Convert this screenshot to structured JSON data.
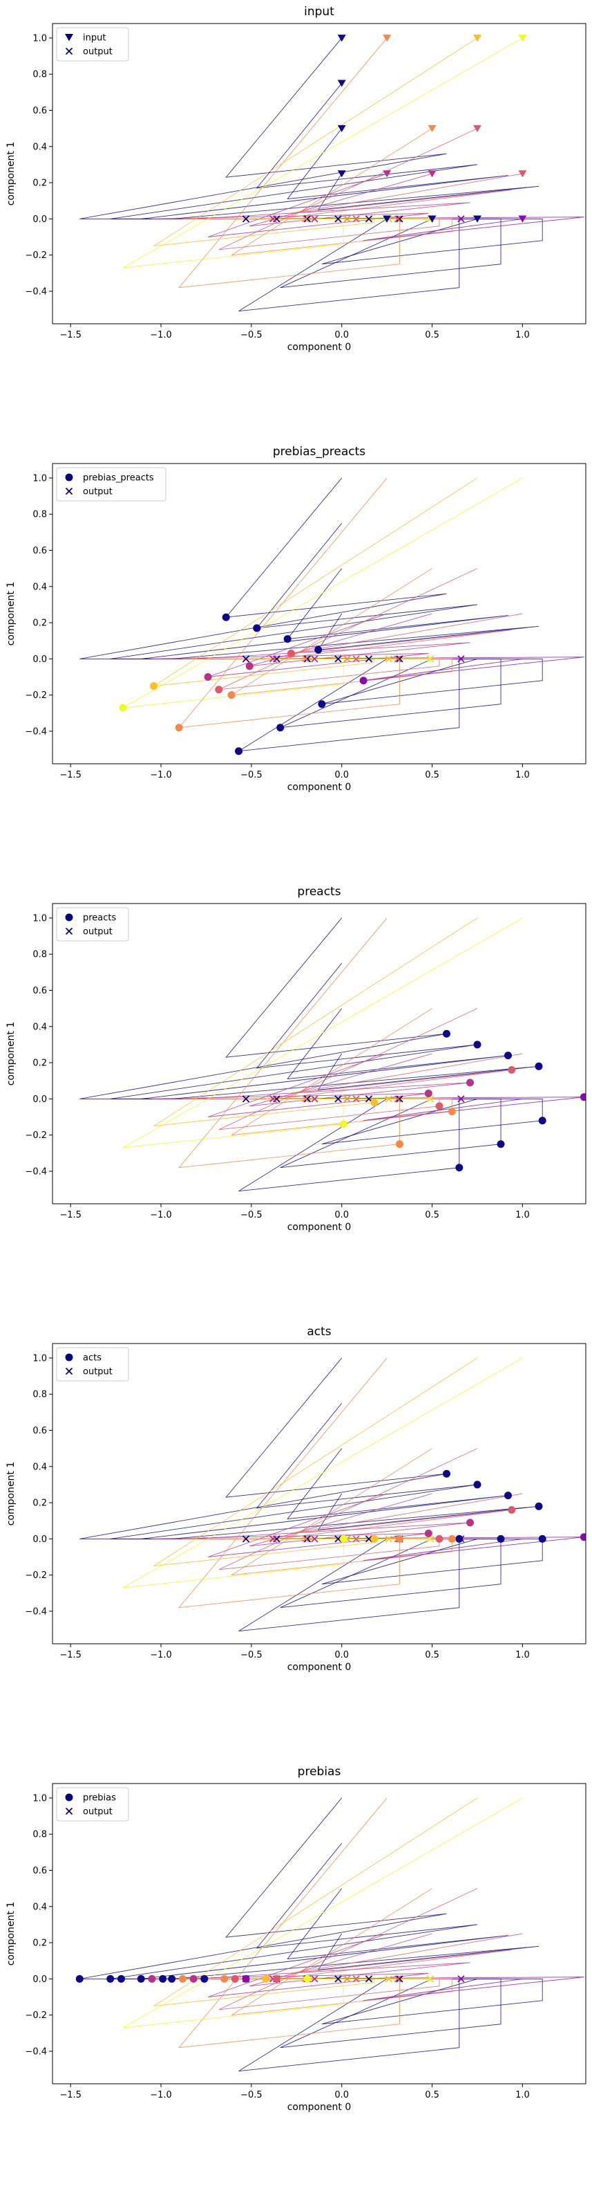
{
  "colors": {
    "accent": "#000080",
    "palette": [
      "#0d0887",
      "#5302a3",
      "#8b0aa5",
      "#b83289",
      "#db5c68",
      "#f48849",
      "#febd2a",
      "#f0f921"
    ]
  },
  "chart_data": [
    {
      "type": "scatter",
      "title": "input",
      "xlabel": "component 0",
      "ylabel": "component 1",
      "xlim": [
        -1.6,
        1.35
      ],
      "ylim": [
        -0.58,
        1.08
      ],
      "xticks": [
        -1.5,
        -1.0,
        -0.5,
        0.0,
        0.5,
        1.0
      ],
      "xtick_labels": [
        "−1.5",
        "−1.0",
        "−0.5",
        "0.0",
        "0.5",
        "1.0"
      ],
      "yticks": [
        -0.4,
        -0.2,
        0.0,
        0.2,
        0.4,
        0.6,
        0.8,
        1.0
      ],
      "ytick_labels": [
        "−0.4",
        "−0.2",
        "0.0",
        "0.2",
        "0.4",
        "0.6",
        "0.8",
        "1.0"
      ],
      "legend": {
        "position": "top-left",
        "entries": [
          "input",
          "output"
        ]
      },
      "markers": "triangle-down",
      "point_source": "input"
    },
    {
      "type": "scatter",
      "title": "prebias_preacts",
      "xlabel": "component 0",
      "ylabel": "component 1",
      "xlim": [
        -1.6,
        1.35
      ],
      "ylim": [
        -0.58,
        1.08
      ],
      "xticks": [
        -1.5,
        -1.0,
        -0.5,
        0.0,
        0.5,
        1.0
      ],
      "xtick_labels": [
        "−1.5",
        "−1.0",
        "−0.5",
        "0.0",
        "0.5",
        "1.0"
      ],
      "yticks": [
        -0.4,
        -0.2,
        0.0,
        0.2,
        0.4,
        0.6,
        0.8,
        1.0
      ],
      "ytick_labels": [
        "−0.4",
        "−0.2",
        "0.0",
        "0.2",
        "0.4",
        "0.6",
        "0.8",
        "1.0"
      ],
      "legend": {
        "position": "top-left",
        "entries": [
          "prebias_preacts",
          "output"
        ]
      },
      "markers": "circle",
      "point_source": "prebias_preacts"
    },
    {
      "type": "scatter",
      "title": "preacts",
      "xlabel": "component 0",
      "ylabel": "component 1",
      "xlim": [
        -1.6,
        1.35
      ],
      "ylim": [
        -0.58,
        1.08
      ],
      "xticks": [
        -1.5,
        -1.0,
        -0.5,
        0.0,
        0.5,
        1.0
      ],
      "xtick_labels": [
        "−1.5",
        "−1.0",
        "−0.5",
        "0.0",
        "0.5",
        "1.0"
      ],
      "yticks": [
        -0.4,
        -0.2,
        0.0,
        0.2,
        0.4,
        0.6,
        0.8,
        1.0
      ],
      "ytick_labels": [
        "−0.4",
        "−0.2",
        "0.0",
        "0.2",
        "0.4",
        "0.6",
        "0.8",
        "1.0"
      ],
      "legend": {
        "position": "top-left",
        "entries": [
          "preacts",
          "output"
        ]
      },
      "markers": "circle",
      "point_source": "preacts"
    },
    {
      "type": "scatter",
      "title": "acts",
      "xlabel": "component 0",
      "ylabel": "component 1",
      "xlim": [
        -1.6,
        1.35
      ],
      "ylim": [
        -0.58,
        1.08
      ],
      "xticks": [
        -1.5,
        -1.0,
        -0.5,
        0.0,
        0.5,
        1.0
      ],
      "xtick_labels": [
        "−1.5",
        "−1.0",
        "−0.5",
        "0.0",
        "0.5",
        "1.0"
      ],
      "yticks": [
        -0.4,
        -0.2,
        0.0,
        0.2,
        0.4,
        0.6,
        0.8,
        1.0
      ],
      "ytick_labels": [
        "−0.4",
        "−0.2",
        "0.0",
        "0.2",
        "0.4",
        "0.6",
        "0.8",
        "1.0"
      ],
      "legend": {
        "position": "top-left",
        "entries": [
          "acts",
          "output"
        ]
      },
      "markers": "circle",
      "point_source": "acts"
    },
    {
      "type": "scatter",
      "title": "prebias",
      "xlabel": "component 0",
      "ylabel": "component 1",
      "xlim": [
        -1.6,
        1.35
      ],
      "ylim": [
        -0.58,
        1.08
      ],
      "xticks": [
        -1.5,
        -1.0,
        -0.5,
        0.0,
        0.5,
        1.0
      ],
      "xtick_labels": [
        "−1.5",
        "−1.0",
        "−0.5",
        "0.0",
        "0.5",
        "1.0"
      ],
      "yticks": [
        -0.4,
        -0.2,
        0.0,
        0.2,
        0.4,
        0.6,
        0.8,
        1.0
      ],
      "ytick_labels": [
        "−0.4",
        "−0.2",
        "0.0",
        "0.2",
        "0.4",
        "0.6",
        "0.8",
        "1.0"
      ],
      "legend": {
        "position": "top-left",
        "entries": [
          "prebias",
          "output"
        ]
      },
      "markers": "circle",
      "point_source": "prebias"
    }
  ],
  "dataset": {
    "colors": [
      "#0d0887",
      "#0d0887",
      "#0d0887",
      "#0d0887",
      "#0d0887",
      "#0d0887",
      "#0d0887",
      "#8b0aa5",
      "#b83289",
      "#b83289",
      "#db5c68",
      "#db5c68",
      "#f48849",
      "#f48849",
      "#febd2a",
      "#f0f921"
    ],
    "input_x": [
      0.0,
      0.0,
      0.0,
      0.0,
      0.25,
      0.5,
      0.75,
      1.0,
      0.25,
      0.5,
      0.75,
      1.0,
      0.25,
      0.5,
      0.75,
      1.0
    ],
    "input_y": [
      1.0,
      0.75,
      0.5,
      0.25,
      0.0,
      0.0,
      0.0,
      0.0,
      0.25,
      0.25,
      0.5,
      0.25,
      1.0,
      0.5,
      1.0,
      1.0
    ],
    "prebias_preacts_x": [
      -0.64,
      -0.47,
      -0.3,
      -0.13,
      -0.57,
      -0.34,
      -0.11,
      0.12,
      -0.74,
      -0.51,
      -0.68,
      -0.28,
      -0.9,
      -0.61,
      -1.04,
      -1.21
    ],
    "prebias_preacts_y": [
      0.23,
      0.17,
      0.11,
      0.05,
      -0.51,
      -0.38,
      -0.25,
      -0.12,
      -0.1,
      -0.04,
      -0.17,
      0.03,
      -0.38,
      -0.2,
      -0.15,
      -0.27
    ],
    "preacts_x": [
      0.58,
      0.75,
      0.92,
      1.09,
      0.65,
      0.88,
      1.11,
      1.34,
      0.48,
      0.71,
      0.54,
      0.94,
      0.32,
      0.61,
      0.18,
      0.01
    ],
    "preacts_y": [
      0.36,
      0.3,
      0.24,
      0.18,
      -0.38,
      -0.25,
      -0.12,
      0.01,
      0.03,
      0.09,
      -0.04,
      0.16,
      -0.25,
      -0.07,
      -0.02,
      -0.14
    ],
    "acts_x": [
      0.58,
      0.75,
      0.92,
      1.09,
      0.65,
      0.88,
      1.11,
      1.34,
      0.48,
      0.71,
      0.54,
      0.94,
      0.32,
      0.61,
      0.18,
      0.01
    ],
    "acts_y": [
      0.36,
      0.3,
      0.24,
      0.18,
      0.0,
      0.0,
      0.0,
      0.01,
      0.03,
      0.09,
      0.0,
      0.16,
      0.0,
      0.0,
      0.0,
      0.0
    ],
    "prebias_x": [
      -1.45,
      -1.28,
      -1.11,
      -0.94,
      -1.22,
      -0.99,
      -0.76,
      -0.53,
      -1.05,
      -0.82,
      -0.59,
      -0.36,
      -0.88,
      -0.65,
      -0.42,
      -0.19
    ],
    "prebias_y": [
      0.0,
      0.0,
      0.0,
      0.0,
      0.0,
      0.0,
      0.0,
      0.0,
      0.0,
      0.0,
      0.0,
      0.0,
      0.0,
      0.0,
      0.0,
      0.0
    ],
    "output_x": [
      -0.53,
      -0.36,
      -0.19,
      -0.02,
      0.15,
      0.32,
      0.49,
      0.66,
      -0.38,
      -0.15,
      0.08,
      0.31,
      -0.2,
      0.03,
      0.26,
      0.49
    ],
    "output_y": [
      0.0,
      0.0,
      0.0,
      0.0,
      0.0,
      0.0,
      0.0,
      0.0,
      0.0,
      0.0,
      0.0,
      0.0,
      0.0,
      0.0,
      0.0,
      0.0
    ]
  }
}
